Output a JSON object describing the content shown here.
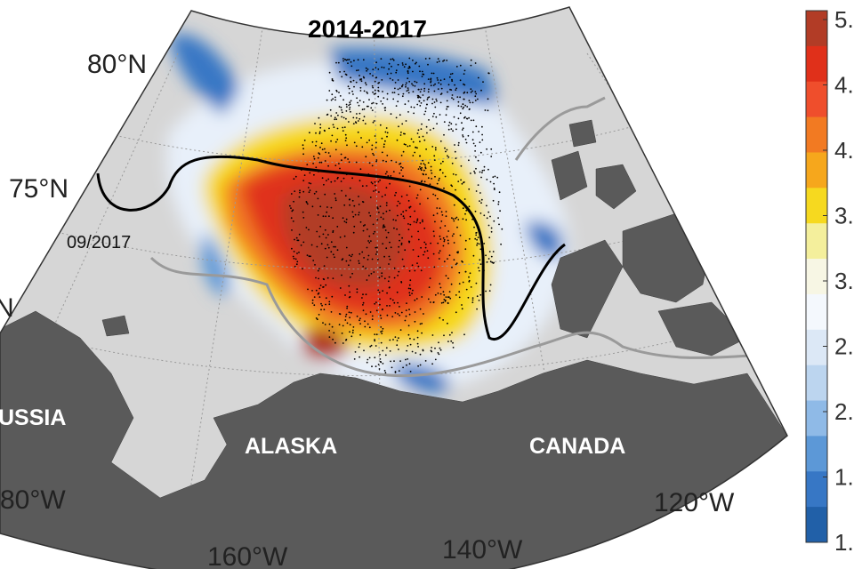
{
  "title": "2014-2017",
  "latitude_labels": [
    "80°N",
    "75°N",
    "N"
  ],
  "longitude_labels": [
    "80°W",
    "160°W",
    "140°W",
    "120°W"
  ],
  "region_labels": [
    "USSIA",
    "ALASKA",
    "CANADA"
  ],
  "contour_label": "09/2017",
  "colorbar": {
    "labels": [
      "5.",
      "4.",
      "4.",
      "3.",
      "3.",
      "2.",
      "2.",
      "1.",
      "1."
    ],
    "colors": [
      "#b23c26",
      "#e0301a",
      "#ef4e2c",
      "#f27a22",
      "#f6a71c",
      "#f6d91f",
      "#f4ef9c",
      "#f7f6e4",
      "#f4f8fd",
      "#dce8f6",
      "#bcd5ef",
      "#8fbae7",
      "#5c98d7",
      "#3777c5",
      "#2160a8"
    ]
  }
}
